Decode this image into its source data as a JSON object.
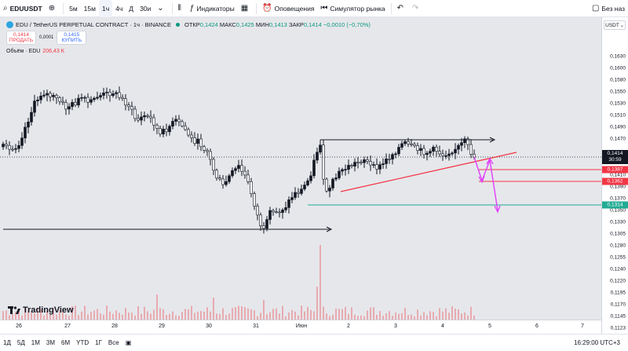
{
  "toolbar": {
    "symbol": "EDUUSDT",
    "intervals": [
      "5м",
      "15м",
      "1ч",
      "4ч",
      "Д",
      "30и"
    ],
    "active_interval": "1ч",
    "indicators": "Индикаторы",
    "alerts": "Оповещения",
    "replay": "Симулятор рынка",
    "right_text": "Без наз"
  },
  "legend": {
    "title": "EDU / TetherUS PERPETUAL CONTRACT · 1ч · BINANCE",
    "open_label": "ОТКР",
    "open": "0,1424",
    "high_label": "МАКС",
    "high": "0,1425",
    "low_label": "МИН",
    "low": "0,1413",
    "close_label": "ЗАКР",
    "close": "0,1414",
    "change": "−0,0010 (−0,70%)"
  },
  "trade": {
    "sell_price": "0,1414",
    "sell_label": "ПРОДАТЬ",
    "spread": "0,0001",
    "buy_price": "0,1415",
    "buy_label": "КУПИТЬ"
  },
  "volume": {
    "label": "Объём · EDU",
    "value": "206,43 K"
  },
  "price_axis": {
    "currency": "USDT",
    "ticks": [
      "0,1630",
      "0,1600",
      "0,1580",
      "0,1550",
      "0,1530",
      "0,1510",
      "0,1490",
      "0,1470",
      "0,1450",
      "0,1430",
      "0,1410",
      "0,1390",
      "0,1370",
      "0,1350",
      "0,1330",
      "0,1305",
      "0,1280",
      "0,1255",
      "0,1240",
      "0,1220",
      "0,1195",
      "0,1170",
      "0,1145",
      "0,1123"
    ],
    "current_price": "0,1414",
    "countdown": "30:59",
    "level_1": "0,1387",
    "level_2": "0,1362",
    "level_3": "0,1314"
  },
  "time_axis": [
    "26",
    "27",
    "28",
    "29",
    "30",
    "31",
    "Июн",
    "2",
    "3",
    "4",
    "5",
    "6",
    "7"
  ],
  "bottom": {
    "ranges": [
      "1Д",
      "5Д",
      "1М",
      "3М",
      "6М",
      "YTD",
      "1Г",
      "Все"
    ],
    "clock": "16:29:00 UTC+3"
  },
  "logo_text": "TradingView",
  "colors": {
    "chart_bg": "#e6e7eb",
    "candle": "#131722",
    "red_level": "#f23645",
    "green_level": "#22ab94",
    "trend": "#f23645",
    "arrows": "#e040fb",
    "volume_up": "#e8a0a6"
  }
}
